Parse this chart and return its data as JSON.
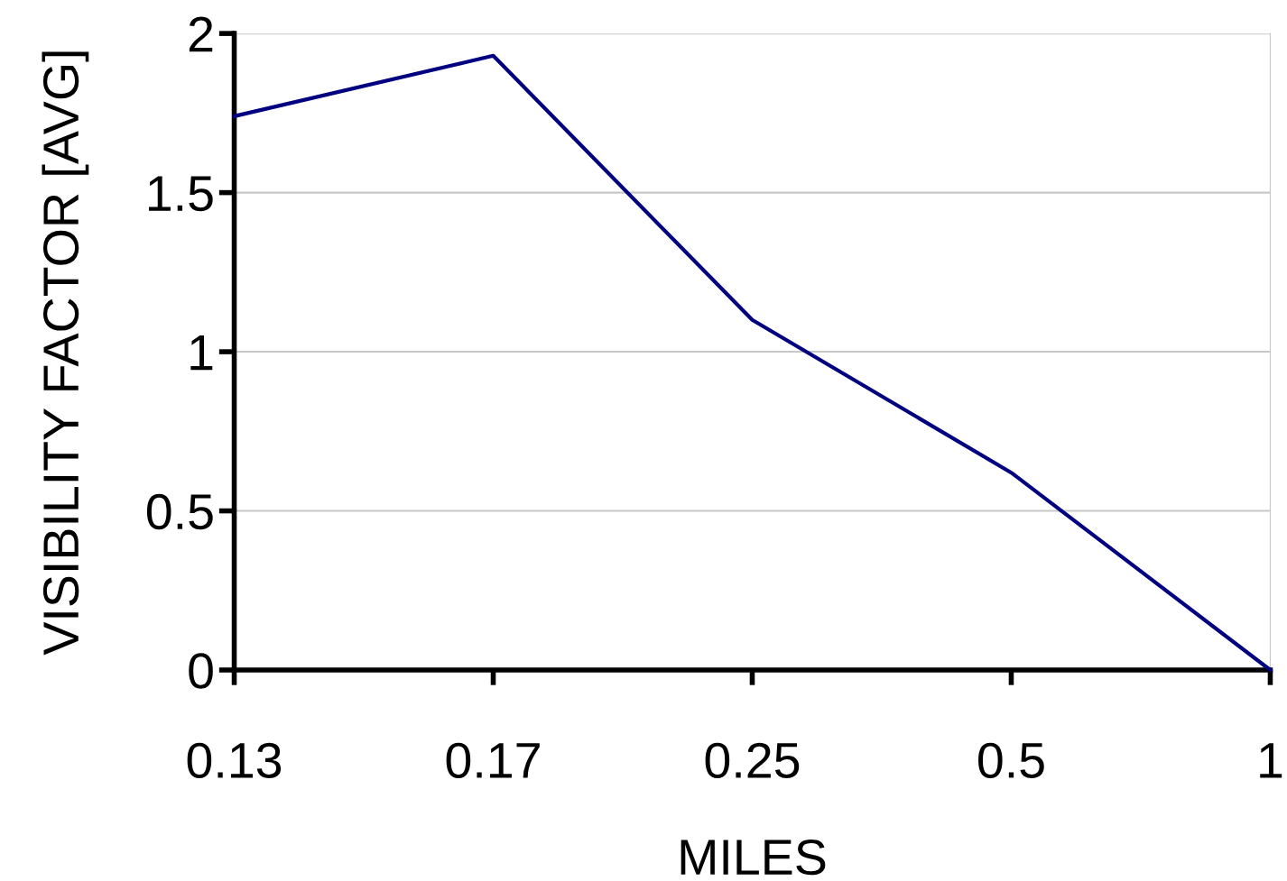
{
  "chart_data": {
    "type": "line",
    "xlabel": "MILES",
    "ylabel": "VISIBILITY FACTOR [AVG]",
    "categories": [
      "0.13",
      "0.17",
      "0.25",
      "0.5",
      "1"
    ],
    "series": [
      {
        "color": "#000080",
        "values": [
          1.74,
          1.93,
          1.1,
          0.62,
          0
        ]
      }
    ],
    "ylim": [
      0,
      2
    ],
    "yticks": [
      0,
      0.5,
      1,
      1.5,
      2
    ],
    "grid": "y",
    "marker": "none",
    "line_style": "solid"
  }
}
